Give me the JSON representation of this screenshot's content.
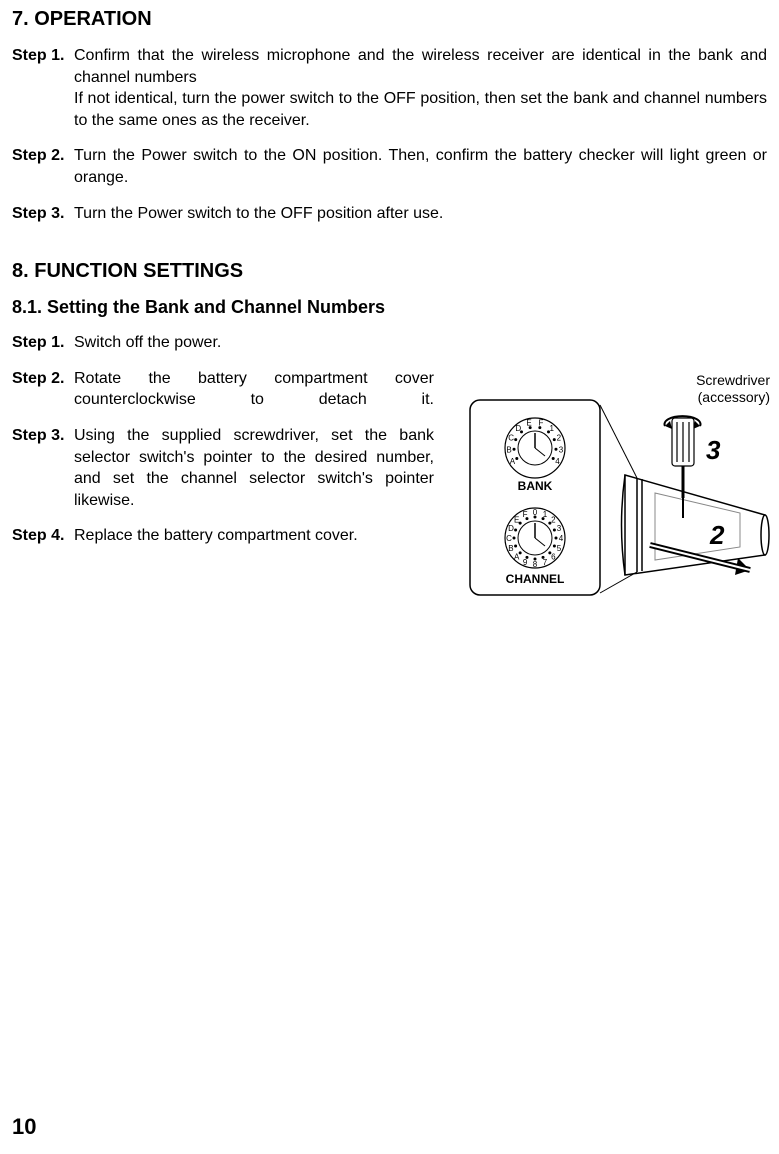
{
  "section7": {
    "heading": "7. OPERATION",
    "steps": [
      {
        "label": "Step 1.",
        "text": "Confirm that the wireless microphone and the wireless receiver are identical in the bank and channel numbers\nIf not identical, turn the power switch to the OFF position, then set the bank and channel numbers to the same ones as the receiver."
      },
      {
        "label": "Step 2.",
        "text": "Turn the Power switch to the ON position. Then, confirm the battery checker will light green or orange."
      },
      {
        "label": "Step 3.",
        "text": "Turn the Power switch to the OFF position after use."
      }
    ]
  },
  "section8": {
    "heading": "8. FUNCTION SETTINGS",
    "sub81": "8.1. Setting the Bank and Channel Numbers",
    "steps": [
      {
        "label": "Step 1.",
        "text": "Switch off the power."
      },
      {
        "label": "Step 2.",
        "text": "Rotate the battery compartment cover counterclockwise to detach it."
      },
      {
        "label": "Step 3.",
        "text": "Using the supplied screwdriver, set the bank selector switch's pointer to the desired number, and set the channel selector switch's pointer likewise."
      },
      {
        "label": "Step 4.",
        "text": "Replace the battery compartment cover."
      }
    ]
  },
  "figure": {
    "screwdriver_label1": "Screwdriver",
    "screwdriver_label2": "(accessory)",
    "num3": "3",
    "num2": "2",
    "bank_label": "BANK",
    "channel_label": "CHANNEL",
    "bank_ticks": [
      "A",
      "B",
      "C",
      "D",
      "E",
      "F",
      "1",
      "2",
      "3",
      "4"
    ],
    "channel_ticks": [
      "9",
      "A",
      "B",
      "C",
      "D",
      "E",
      "F",
      "0",
      "1",
      "2",
      "3",
      "4",
      "5",
      "6",
      "7",
      "8"
    ],
    "colors": {
      "stroke": "#000000",
      "fill": "#ffffff",
      "grey": "#888888"
    }
  },
  "page_number": "10"
}
